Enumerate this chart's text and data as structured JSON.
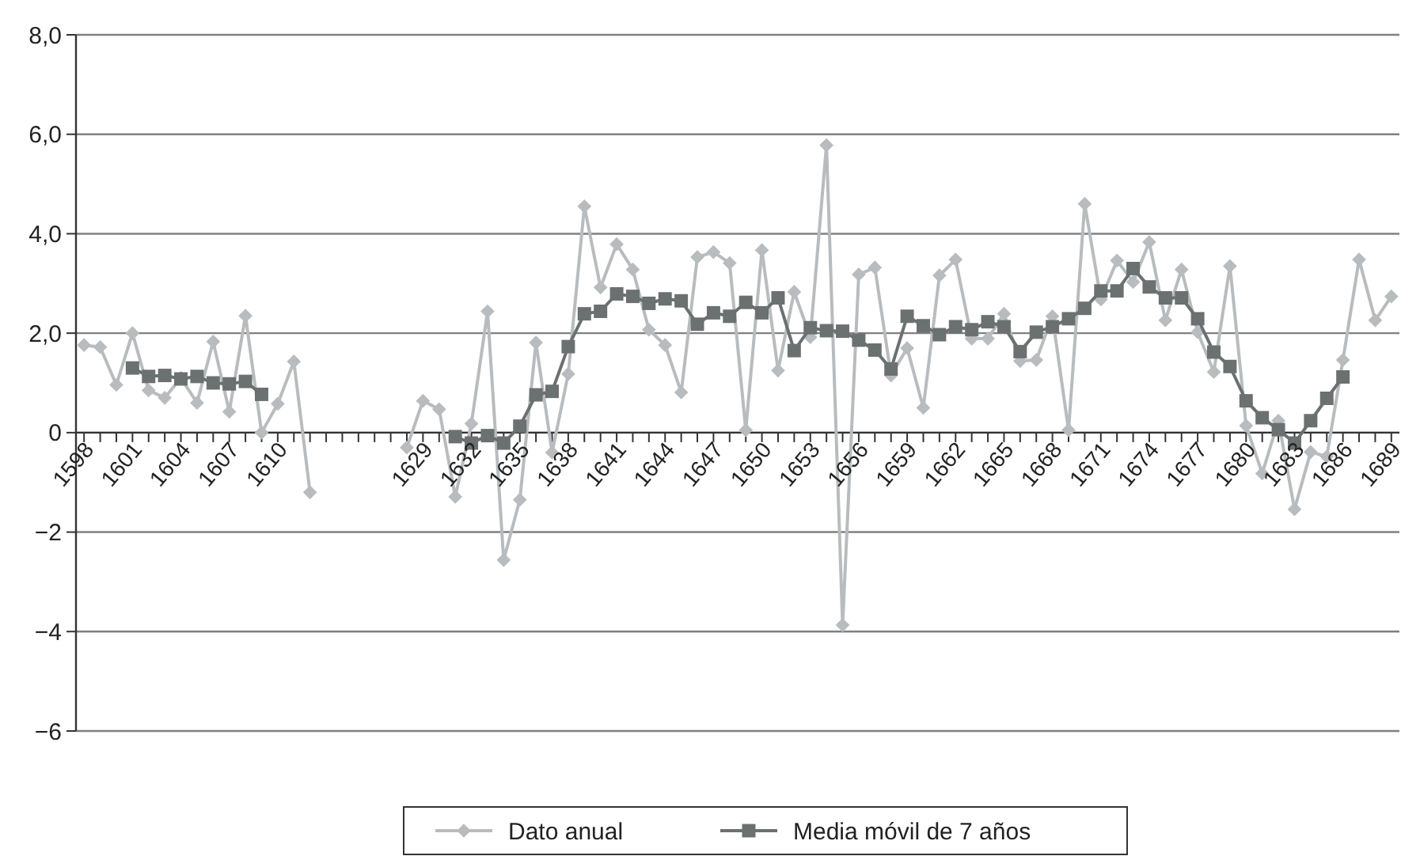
{
  "chart_data": {
    "type": "line",
    "categories": [
      "1598",
      null,
      null,
      "1601",
      null,
      null,
      "1604",
      null,
      null,
      "1607",
      null,
      null,
      "1610",
      null,
      null,
      null,
      null,
      null,
      null,
      null,
      null,
      "1629",
      null,
      null,
      "1632",
      null,
      null,
      "1635",
      null,
      null,
      "1638",
      null,
      null,
      "1641",
      null,
      null,
      "1644",
      null,
      null,
      "1647",
      null,
      null,
      "1650",
      null,
      null,
      "1653",
      null,
      null,
      "1656",
      null,
      null,
      "1659",
      null,
      null,
      "1662",
      null,
      null,
      "1665",
      null,
      null,
      "1668",
      null,
      null,
      "1671",
      null,
      null,
      "1674",
      null,
      null,
      "1677",
      null,
      null,
      "1680",
      null,
      null,
      "1683",
      null,
      null,
      "1686",
      null,
      null,
      "1689"
    ],
    "series": [
      {
        "name": "Dato anual",
        "color": "#b9bcbe",
        "marker": "diamond",
        "values": [
          1.76,
          1.72,
          0.96,
          2.0,
          0.85,
          0.7,
          1.1,
          0.6,
          1.83,
          0.42,
          2.35,
          0.0,
          0.58,
          1.43,
          -1.2,
          null,
          null,
          null,
          null,
          null,
          -0.3,
          0.64,
          0.47,
          -1.29,
          0.18,
          2.44,
          -2.56,
          -1.35,
          1.81,
          -0.4,
          1.18,
          4.55,
          2.92,
          3.79,
          3.28,
          2.07,
          1.76,
          0.81,
          3.53,
          3.63,
          3.41,
          0.05,
          3.67,
          1.25,
          2.83,
          1.92,
          5.78,
          -3.87,
          3.18,
          3.32,
          1.15,
          1.7,
          0.5,
          3.16,
          3.48,
          1.89,
          1.89,
          2.39,
          1.44,
          1.46,
          2.34,
          0.05,
          4.6,
          2.68,
          3.46,
          3.03,
          3.83,
          2.26,
          3.28,
          2.02,
          1.22,
          3.35,
          0.14,
          -0.82,
          0.24,
          -1.54,
          -0.39,
          -0.48,
          1.46,
          3.48,
          2.26,
          2.74
        ]
      },
      {
        "name": "Media móvil de 7 años",
        "color": "#6b7070",
        "marker": "square",
        "values": [
          null,
          null,
          null,
          1.3,
          1.13,
          1.15,
          1.08,
          1.13,
          1.0,
          0.98,
          1.03,
          0.77,
          null,
          null,
          null,
          null,
          null,
          null,
          null,
          null,
          null,
          null,
          null,
          -0.08,
          -0.21,
          -0.06,
          -0.21,
          0.13,
          0.76,
          0.83,
          1.73,
          2.39,
          2.44,
          2.79,
          2.74,
          2.6,
          2.69,
          2.65,
          2.18,
          2.41,
          2.34,
          2.62,
          2.41,
          2.71,
          1.65,
          2.11,
          2.05,
          2.04,
          1.86,
          1.66,
          1.28,
          2.34,
          2.15,
          1.97,
          2.13,
          2.07,
          2.23,
          2.13,
          1.63,
          2.02,
          2.13,
          2.29,
          2.5,
          2.85,
          2.85,
          3.3,
          2.93,
          2.71,
          2.71,
          2.29,
          1.62,
          1.33,
          0.64,
          0.3,
          0.06,
          -0.21,
          0.24,
          0.69,
          1.12,
          null,
          null,
          null
        ]
      }
    ],
    "ylim": [
      -6,
      8
    ],
    "yticks": [
      {
        "value": 8,
        "label": "8,0"
      },
      {
        "value": 6,
        "label": "6,0"
      },
      {
        "value": 4,
        "label": "4,0"
      },
      {
        "value": 2,
        "label": "2,0"
      },
      0,
      {
        "value": -2,
        "label": "−2"
      },
      {
        "value": -4,
        "label": "−4"
      },
      {
        "value": -6,
        "label": "−6"
      }
    ],
    "grid": "y",
    "legend": "bottom",
    "line_style": "solid"
  }
}
